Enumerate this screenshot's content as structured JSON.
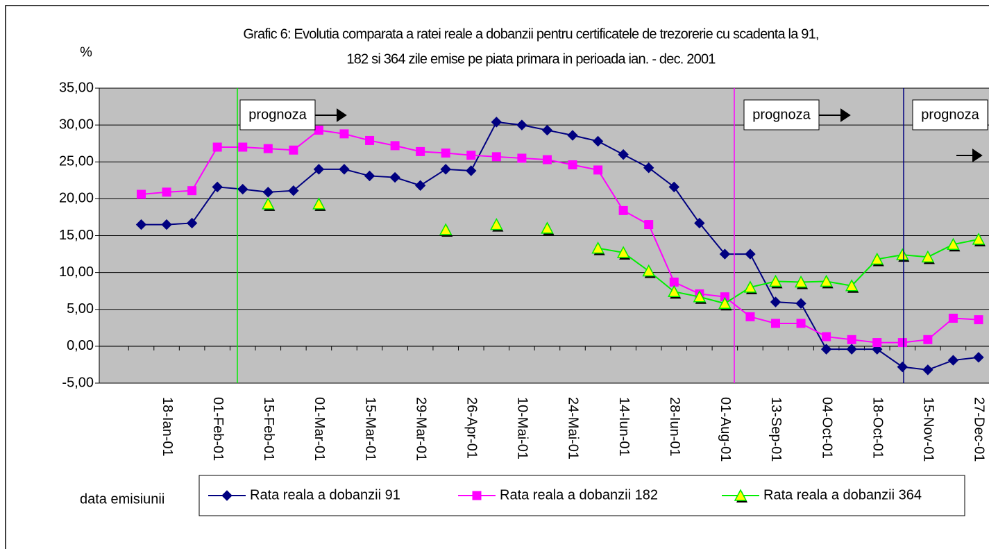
{
  "chart_data": {
    "type": "line",
    "title": [
      "Grafic 6: Evolutia comparata a ratei reale a dobanzii pentru certificatele de trezorerie cu scadenta la 91,",
      "182 si 364 zile emise pe piata primara in perioada ian. - dec. 2001"
    ],
    "y_label": "%",
    "x_label": "data emisiunii",
    "annotations": [
      "prognoza",
      "prognoza",
      "prognoza"
    ],
    "categories": [
      null,
      "18-Ian-01",
      null,
      "01-Feb-01",
      null,
      "15-Feb-01",
      null,
      "01-Mar-01",
      null,
      "15-Mar-01",
      null,
      "29-Mar-01",
      null,
      "26-Apr-01",
      null,
      "10-Mai-01",
      null,
      "24-Mai-01",
      null,
      "14-Iun-01",
      null,
      "28-Iun-01",
      null,
      "01-Aug-01",
      null,
      "13-Sep-01",
      null,
      "04-Oct-01",
      null,
      "18-Oct-01",
      null,
      "15-Nov-01",
      null,
      "27-Dec-01"
    ],
    "series": [
      {
        "name": "Rata reala a dobanzii 91",
        "color": "#000080",
        "marker": "diamond",
        "values": [
          16.5,
          16.5,
          16.7,
          21.6,
          21.3,
          20.9,
          21.1,
          24.0,
          24.0,
          23.1,
          22.9,
          21.8,
          24.0,
          23.8,
          30.4,
          30.0,
          29.3,
          28.6,
          27.8,
          26.0,
          24.2,
          21.6,
          16.7,
          12.5,
          12.5,
          6.0,
          5.8,
          -0.4,
          -0.4,
          -0.4,
          -2.8,
          -3.2,
          -1.9,
          -1.5
        ]
      },
      {
        "name": "Rata reala a dobanzii 182",
        "color": "#ff00ff",
        "marker": "square",
        "values": [
          20.6,
          20.9,
          21.1,
          27.0,
          27.0,
          26.8,
          26.6,
          29.3,
          28.8,
          27.9,
          27.2,
          26.4,
          26.2,
          25.9,
          25.7,
          25.5,
          25.3,
          24.6,
          23.9,
          18.4,
          16.5,
          8.7,
          7.1,
          6.7,
          4.0,
          3.1,
          3.1,
          1.3,
          0.9,
          0.5,
          0.5,
          0.9,
          3.8,
          3.6
        ]
      },
      {
        "name": "Rata reala a dobanzii 364",
        "color": "#00ee00",
        "marker": "triangle",
        "values": [
          null,
          null,
          null,
          null,
          null,
          19.3,
          null,
          19.3,
          null,
          null,
          null,
          null,
          15.8,
          null,
          16.5,
          null,
          16.0,
          null,
          13.3,
          12.7,
          10.2,
          7.4,
          6.7,
          5.8,
          8.0,
          8.8,
          8.7,
          8.8,
          8.2,
          11.8,
          12.4,
          12.1,
          13.8,
          14.5
        ]
      }
    ],
    "ylim": [
      -5,
      35
    ],
    "yticks": [
      {
        "value": 35,
        "label": "35,00"
      },
      {
        "value": 30,
        "label": "30,00"
      },
      {
        "value": 25,
        "label": "25,00"
      },
      {
        "value": 20,
        "label": "20,00"
      },
      {
        "value": 15,
        "label": "15,00"
      },
      {
        "value": 10,
        "label": "10,00"
      },
      {
        "value": 5,
        "label": "5,00"
      },
      {
        "value": 0,
        "label": "0,00"
      },
      {
        "value": -5,
        "label": "-5,00"
      }
    ],
    "grid": true,
    "background": "#c0c0c0"
  }
}
